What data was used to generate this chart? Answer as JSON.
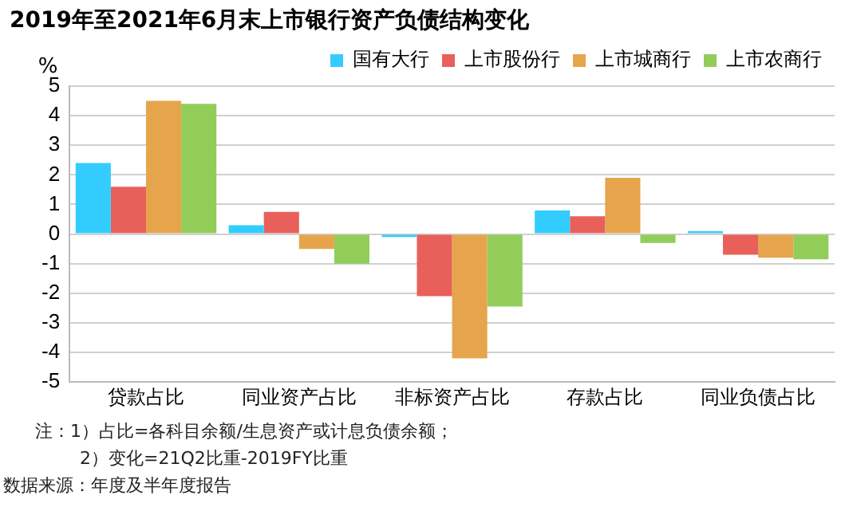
{
  "chart_data": {
    "type": "bar",
    "title": "2019年至2021年6月末上市银行资产负债结构变化",
    "ylabel": "%",
    "categories": [
      "贷款占比",
      "同业资产占比",
      "非标资产占比",
      "存款占比",
      "同业负债占比"
    ],
    "series": [
      {
        "name": "国有大行",
        "color": "#33ccff",
        "values": [
          2.4,
          0.3,
          -0.1,
          0.8,
          0.1
        ]
      },
      {
        "name": "上市股份行",
        "color": "#e9605a",
        "values": [
          1.6,
          0.75,
          -2.1,
          0.6,
          -0.7
        ]
      },
      {
        "name": "上市城商行",
        "color": "#e6a54c",
        "values": [
          4.5,
          -0.5,
          -4.2,
          1.9,
          -0.8
        ]
      },
      {
        "name": "上市农商行",
        "color": "#92cd5a",
        "values": [
          4.4,
          -1.0,
          -2.45,
          -0.3,
          -0.85
        ]
      }
    ],
    "ylim": [
      -5,
      5
    ],
    "yticks": [
      -5,
      -4,
      -3,
      -2,
      -1,
      0,
      1,
      2,
      3,
      4,
      5
    ],
    "grid": "y",
    "legend": "top",
    "annotations": [
      "注：1）占比=各科目余额/生息资产或计息负债余额；",
      "2）变化=21Q2比重-2019FY比重",
      "数据来源：年度及半年度报告"
    ]
  }
}
